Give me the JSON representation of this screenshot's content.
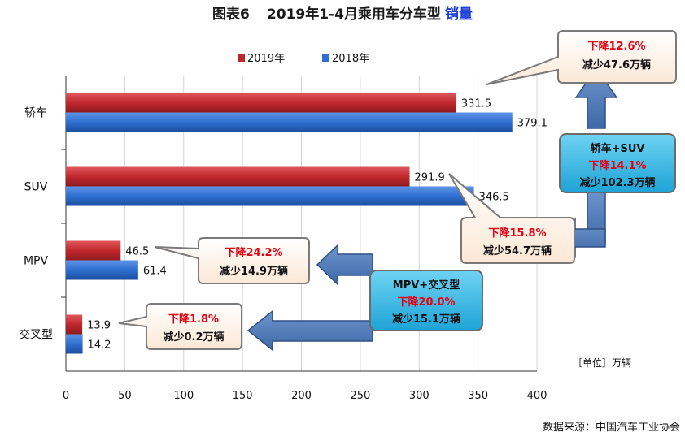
{
  "chart_data": {
    "type": "bar",
    "orientation": "horizontal",
    "title_prefix": "图表6",
    "title_main": "2019年1-4月乘用车分车型",
    "title_accent": "销量",
    "categories": [
      "轿车",
      "SUV",
      "MPV",
      "交叉型"
    ],
    "series": [
      {
        "name": "2019年",
        "color": "#c0272d",
        "values": [
          331.5,
          291.9,
          46.5,
          13.9
        ]
      },
      {
        "name": "2018年",
        "color": "#2e6fd1",
        "values": [
          379.1,
          346.5,
          61.4,
          14.2
        ]
      }
    ],
    "xlim": [
      0,
      400
    ],
    "xticks": [
      0,
      50,
      100,
      150,
      200,
      250,
      300,
      350,
      400
    ],
    "unit_label": "［单位］万辆",
    "source": "数据来源：中国汽车工业协会",
    "legend_position": "top",
    "callouts": [
      {
        "line1": "下降12.6%",
        "line2": "减少47.6万辆"
      },
      {
        "line1": "下降15.8%",
        "line2": "减少54.7万辆"
      },
      {
        "line1": "下降24.2%",
        "line2": "减少14.9万辆"
      },
      {
        "line1": "下降1.8%",
        "line2": "减少0.2万辆"
      }
    ],
    "group_boxes": [
      {
        "header": "轿车+SUV",
        "line1": "下降14.1%",
        "line2": "减少102.3万辆"
      },
      {
        "header": "MPV+交叉型",
        "line1": "下降20.0%",
        "line2": "减少15.1万辆"
      }
    ]
  }
}
